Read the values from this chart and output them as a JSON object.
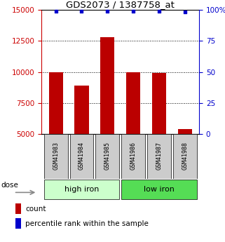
{
  "title": "GDS2073 / 1387758_at",
  "samples": [
    "GSM41983",
    "GSM41984",
    "GSM41985",
    "GSM41986",
    "GSM41987",
    "GSM41988"
  ],
  "counts": [
    10000,
    8900,
    12800,
    10000,
    9900,
    5400
  ],
  "percentile_ranks": [
    99,
    99,
    99,
    99,
    99,
    98
  ],
  "ylim_left": [
    5000,
    15000
  ],
  "ylim_right": [
    0,
    100
  ],
  "yticks_left": [
    5000,
    7500,
    10000,
    12500,
    15000
  ],
  "yticks_right": [
    0,
    25,
    50,
    75,
    100
  ],
  "gridlines": [
    7500,
    10000,
    12500
  ],
  "bar_color": "#bb0000",
  "dot_color": "#0000cc",
  "groups": [
    "high iron",
    "low iron"
  ],
  "group_counts": [
    3,
    3
  ],
  "group_colors": [
    "#ccffcc",
    "#55dd55"
  ],
  "dose_label": "dose",
  "legend_count_label": "count",
  "legend_pct_label": "percentile rank within the sample",
  "title_fontsize": 9.5,
  "tick_fontsize": 7.5,
  "sample_fontsize": 6.0,
  "group_fontsize": 8,
  "legend_fontsize": 7.5,
  "axis_color_left": "#cc0000",
  "axis_color_right": "#0000cc",
  "bar_width": 0.55,
  "sample_box_color": "#cccccc",
  "figure_width": 3.21,
  "figure_height": 3.45,
  "figure_dpi": 100
}
